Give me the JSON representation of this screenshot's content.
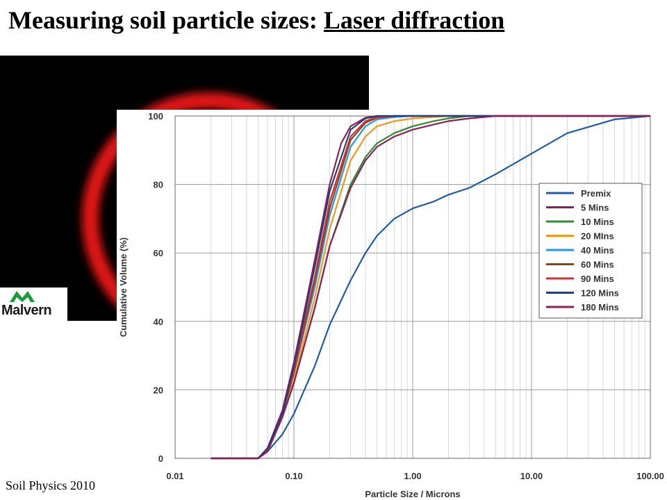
{
  "slide": {
    "title_main": "Measuring soil particle sizes: ",
    "title_underlined": "Laser diffraction",
    "footer": "Soil Physics 2010",
    "logo_text": "Malvern",
    "logo_icon": "malvern-mountain-logo",
    "diffraction_image": "laser-diffraction-ring-pattern"
  },
  "chart_data": {
    "type": "line",
    "xlabel": "Particle Size / Microns",
    "ylabel": "Cumulative Volume (%)",
    "x_scale": "log",
    "xlim": [
      0.01,
      100
    ],
    "ylim": [
      0,
      100
    ],
    "x_ticks": [
      0.01,
      0.1,
      1,
      10,
      100
    ],
    "x_tick_labels": [
      "0.01",
      "0.10",
      "1.00",
      "10.00",
      "100.00"
    ],
    "y_ticks": [
      0,
      20,
      40,
      60,
      80,
      100
    ],
    "y_tick_labels": [
      "0",
      "20",
      "40",
      "60",
      "80",
      "100"
    ],
    "grid": true,
    "legend_position": "right",
    "series": [
      {
        "name": "Premix",
        "color": "#1f5aa8",
        "points": [
          [
            0.02,
            0
          ],
          [
            0.05,
            0
          ],
          [
            0.06,
            2
          ],
          [
            0.08,
            7
          ],
          [
            0.1,
            13
          ],
          [
            0.15,
            27
          ],
          [
            0.2,
            39
          ],
          [
            0.3,
            52
          ],
          [
            0.4,
            60
          ],
          [
            0.5,
            65
          ],
          [
            0.7,
            70
          ],
          [
            1,
            73
          ],
          [
            1.5,
            75
          ],
          [
            2,
            77
          ],
          [
            3,
            79
          ],
          [
            5,
            83
          ],
          [
            10,
            89
          ],
          [
            20,
            95
          ],
          [
            50,
            99
          ],
          [
            100,
            100
          ]
        ]
      },
      {
        "name": "5 Mins",
        "color": "#8a1f5e",
        "points": [
          [
            0.02,
            0
          ],
          [
            0.05,
            0
          ],
          [
            0.06,
            3
          ],
          [
            0.08,
            14
          ],
          [
            0.1,
            28
          ],
          [
            0.15,
            58
          ],
          [
            0.2,
            80
          ],
          [
            0.25,
            92
          ],
          [
            0.3,
            97
          ],
          [
            0.4,
            99.5
          ],
          [
            0.5,
            100
          ],
          [
            100,
            100
          ]
        ]
      },
      {
        "name": "10 Mins",
        "color": "#2e8b2e",
        "points": [
          [
            0.02,
            0
          ],
          [
            0.05,
            0
          ],
          [
            0.06,
            2
          ],
          [
            0.08,
            12
          ],
          [
            0.1,
            22
          ],
          [
            0.15,
            44
          ],
          [
            0.2,
            62
          ],
          [
            0.3,
            80
          ],
          [
            0.4,
            88
          ],
          [
            0.5,
            92
          ],
          [
            0.7,
            95
          ],
          [
            1,
            97
          ],
          [
            1.5,
            98.5
          ],
          [
            2,
            99.3
          ],
          [
            3,
            100
          ],
          [
            100,
            100
          ]
        ]
      },
      {
        "name": "20 MIns",
        "color": "#f7941d",
        "points": [
          [
            0.02,
            0
          ],
          [
            0.05,
            0
          ],
          [
            0.06,
            2
          ],
          [
            0.08,
            12
          ],
          [
            0.1,
            23
          ],
          [
            0.15,
            47
          ],
          [
            0.2,
            67
          ],
          [
            0.3,
            87
          ],
          [
            0.4,
            94
          ],
          [
            0.5,
            97
          ],
          [
            0.7,
            98.5
          ],
          [
            1,
            99.3
          ],
          [
            2,
            100
          ],
          [
            100,
            100
          ]
        ]
      },
      {
        "name": "40 Mins",
        "color": "#2196f3",
        "points": [
          [
            0.02,
            0
          ],
          [
            0.05,
            0
          ],
          [
            0.06,
            2.5
          ],
          [
            0.08,
            13
          ],
          [
            0.1,
            25
          ],
          [
            0.15,
            50
          ],
          [
            0.2,
            71
          ],
          [
            0.3,
            91
          ],
          [
            0.4,
            97
          ],
          [
            0.5,
            99
          ],
          [
            0.7,
            99.7
          ],
          [
            1,
            100
          ],
          [
            100,
            100
          ]
        ]
      },
      {
        "name": "60 Mins",
        "color": "#8b4513",
        "points": [
          [
            0.02,
            0
          ],
          [
            0.05,
            0
          ],
          [
            0.06,
            2.5
          ],
          [
            0.08,
            13
          ],
          [
            0.1,
            25
          ],
          [
            0.15,
            52
          ],
          [
            0.2,
            73
          ],
          [
            0.3,
            93
          ],
          [
            0.4,
            98
          ],
          [
            0.5,
            99.5
          ],
          [
            0.7,
            100
          ],
          [
            100,
            100
          ]
        ]
      },
      {
        "name": "90 Mins",
        "color": "#d32f2f",
        "points": [
          [
            0.02,
            0
          ],
          [
            0.05,
            0
          ],
          [
            0.06,
            2.5
          ],
          [
            0.08,
            13
          ],
          [
            0.1,
            26
          ],
          [
            0.15,
            53
          ],
          [
            0.2,
            75
          ],
          [
            0.3,
            94
          ],
          [
            0.4,
            98.5
          ],
          [
            0.5,
            99.7
          ],
          [
            0.7,
            100
          ],
          [
            100,
            100
          ]
        ]
      },
      {
        "name": "120 Mins",
        "color": "#1f3f7a",
        "points": [
          [
            0.02,
            0
          ],
          [
            0.05,
            0
          ],
          [
            0.06,
            3
          ],
          [
            0.08,
            13
          ],
          [
            0.1,
            27
          ],
          [
            0.15,
            56
          ],
          [
            0.2,
            78
          ],
          [
            0.3,
            96
          ],
          [
            0.4,
            99.3
          ],
          [
            0.5,
            100
          ],
          [
            100,
            100
          ]
        ]
      },
      {
        "name": "180 Mins",
        "color": "#8a1f5e",
        "points": [
          [
            0.02,
            0
          ],
          [
            0.05,
            0
          ],
          [
            0.06,
            2
          ],
          [
            0.08,
            12
          ],
          [
            0.1,
            22
          ],
          [
            0.15,
            44
          ],
          [
            0.2,
            62
          ],
          [
            0.3,
            79
          ],
          [
            0.4,
            87
          ],
          [
            0.5,
            91
          ],
          [
            0.7,
            94
          ],
          [
            1,
            96
          ],
          [
            1.5,
            97.5
          ],
          [
            2,
            98.5
          ],
          [
            3,
            99.3
          ],
          [
            5,
            100
          ],
          [
            100,
            100
          ]
        ]
      }
    ]
  }
}
